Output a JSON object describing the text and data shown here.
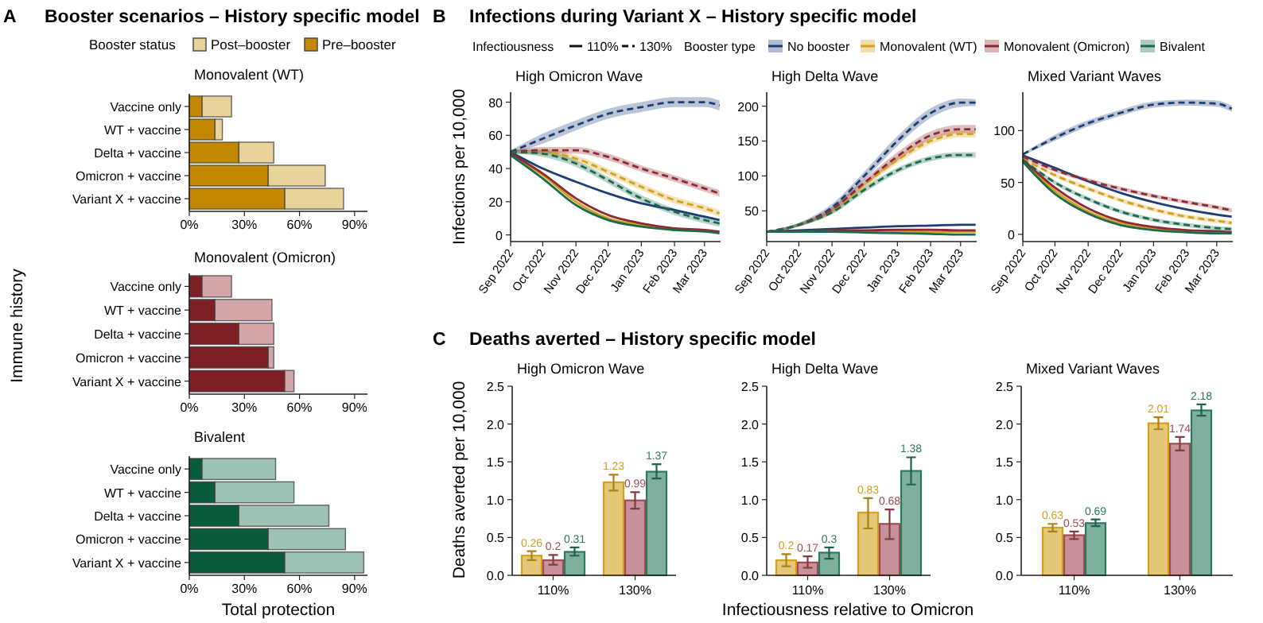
{
  "chart_data": [
    {
      "type": "bar",
      "orientation": "horizontal",
      "stacked": true,
      "title": "Booster scenarios – History specific model",
      "subtitle": "Monovalent (WT)",
      "annotations": [
        "A"
      ],
      "legend": "top",
      "legend_title": "Booster status",
      "categories": [
        "Vaccine only",
        "WT + vaccine",
        "Delta + vaccine",
        "Omicron + vaccine",
        "Variant X + vaccine"
      ],
      "xlim": [
        0,
        97
      ],
      "xticks": [
        {
          "value": 0,
          "label": "0%"
        },
        {
          "value": 30,
          "label": "30%"
        },
        {
          "value": 60,
          "label": "60%"
        },
        {
          "value": 90,
          "label": "90%"
        }
      ],
      "series": [
        {
          "name": "Pre–booster",
          "color": "#c48800",
          "values": [
            7,
            14,
            27,
            43,
            52
          ]
        },
        {
          "name": "Post–booster",
          "color": "#e8d39b",
          "values": [
            16,
            4,
            19,
            31,
            32
          ]
        }
      ]
    },
    {
      "type": "bar",
      "orientation": "horizontal",
      "stacked": true,
      "title": "Monovalent (Omicron)",
      "ylabel": "Immune history",
      "categories": [
        "Vaccine only",
        "WT + vaccine",
        "Delta + vaccine",
        "Omicron + vaccine",
        "Variant X + vaccine"
      ],
      "xlim": [
        0,
        97
      ],
      "xticks": [
        {
          "value": 0,
          "label": "0%"
        },
        {
          "value": 30,
          "label": "30%"
        },
        {
          "value": 60,
          "label": "60%"
        },
        {
          "value": 90,
          "label": "90%"
        }
      ],
      "series": [
        {
          "color": "#7d1f24",
          "values": [
            7,
            14,
            27,
            43,
            52
          ]
        },
        {
          "color": "#d3a6aa",
          "values": [
            16,
            31,
            19,
            3,
            5
          ]
        }
      ]
    },
    {
      "type": "bar",
      "orientation": "horizontal",
      "stacked": true,
      "title": "Bivalent",
      "xlabel": "Total protection",
      "categories": [
        "Vaccine only",
        "WT + vaccine",
        "Delta + vaccine",
        "Omicron + vaccine",
        "Variant X + vaccine"
      ],
      "xlim": [
        0,
        97
      ],
      "xticks": [
        {
          "value": 0,
          "label": "0%"
        },
        {
          "value": 30,
          "label": "30%"
        },
        {
          "value": 60,
          "label": "60%"
        },
        {
          "value": 90,
          "label": "90%"
        }
      ],
      "series": [
        {
          "color": "#0a5a3c",
          "values": [
            7,
            14,
            27,
            43,
            52
          ]
        },
        {
          "color": "#9ec3b6",
          "values": [
            40,
            43,
            49,
            42,
            43
          ]
        }
      ]
    },
    {
      "type": "line",
      "title": "Infections during Variant X – History specific model",
      "subtitle": "High Omicron Wave",
      "annotations": [
        "B",
        "Infectiousness",
        "110%",
        "130%"
      ],
      "legend": "top",
      "legend_title": "Booster type",
      "ylabel": "Infections per 10,000",
      "x": [
        "2022-09-01",
        "2022-10-01",
        "2022-11-01",
        "2022-12-01",
        "2023-01-01",
        "2023-02-01",
        "2023-03-01",
        "2023-03-15"
      ],
      "xlim": [
        "2022-09-01",
        "2023-03-16"
      ],
      "xticks": [
        {
          "value": "2022-09-01",
          "label": "Sep 2022"
        },
        {
          "value": "2022-10-01",
          "label": "Oct 2022"
        },
        {
          "value": "2022-11-01",
          "label": "Nov 2022"
        },
        {
          "value": "2022-12-01",
          "label": "Dec 2022"
        },
        {
          "value": "2023-01-01",
          "label": "Jan 2023"
        },
        {
          "value": "2023-02-01",
          "label": "Feb 2023"
        },
        {
          "value": "2023-03-01",
          "label": "Mar 2023"
        }
      ],
      "ylim": [
        -4,
        86
      ],
      "yticks": [
        0,
        20,
        40,
        60,
        80
      ],
      "series": [
        {
          "name": "No booster",
          "color": "#1f3f73",
          "line_style": "solid",
          "values": [
            50,
            40,
            32,
            25,
            19,
            15,
            11,
            9
          ]
        },
        {
          "name": "Monovalent (WT)",
          "color": "#d4a11e",
          "line_style": "solid",
          "values": [
            48,
            36,
            20,
            10,
            6,
            3,
            null,
            null
          ]
        },
        {
          "name": "Monovalent (Omicron)",
          "color": "#8e2a35",
          "line_style": "solid",
          "values": [
            49,
            37,
            22,
            12,
            7,
            4,
            3,
            2
          ]
        },
        {
          "name": "Bivalent",
          "color": "#1b6b4b",
          "line_style": "solid",
          "values": [
            48,
            34,
            18,
            9,
            5,
            3,
            2,
            1
          ]
        },
        {
          "color": "#1f3f73",
          "line_style": "dashed",
          "values": [
            50,
            58,
            66,
            73,
            77,
            80,
            80,
            78
          ],
          "lower": [
            49,
            55,
            63,
            70,
            74,
            77,
            77,
            75
          ],
          "upper": [
            51,
            61,
            69,
            76,
            80,
            83,
            83,
            81
          ]
        },
        {
          "color": "#d4a11e",
          "line_style": "dashed",
          "values": [
            50,
            50,
            46,
            38,
            29,
            21,
            16,
            13
          ],
          "lower": [
            49,
            48,
            44,
            36,
            27,
            19,
            14,
            11
          ],
          "upper": [
            51,
            52,
            48,
            40,
            31,
            23,
            18,
            15
          ]
        },
        {
          "color": "#8e2a35",
          "line_style": "dashed",
          "values": [
            50,
            51,
            51,
            47,
            40,
            34,
            28,
            25
          ],
          "lower": [
            49,
            49,
            49,
            45,
            38,
            32,
            26,
            23
          ],
          "upper": [
            51,
            53,
            53,
            49,
            42,
            36,
            30,
            27
          ]
        },
        {
          "color": "#1b6b4b",
          "line_style": "dashed",
          "values": [
            50,
            49,
            43,
            33,
            22,
            14,
            9,
            7
          ],
          "lower": [
            49,
            47,
            41,
            31,
            20,
            12,
            7,
            5
          ],
          "upper": [
            51,
            51,
            45,
            35,
            24,
            16,
            11,
            9
          ]
        }
      ]
    },
    {
      "type": "line",
      "title": "High Delta Wave",
      "x": [
        "2022-09-01",
        "2022-10-01",
        "2022-11-01",
        "2022-12-01",
        "2023-01-01",
        "2023-02-01",
        "2023-03-01",
        "2023-03-15"
      ],
      "xlim": [
        "2022-09-01",
        "2023-03-16"
      ],
      "xticks": [
        {
          "value": "2022-09-01",
          "label": "Sep 2022"
        },
        {
          "value": "2022-10-01",
          "label": "Oct 2022"
        },
        {
          "value": "2022-11-01",
          "label": "Nov 2022"
        },
        {
          "value": "2022-12-01",
          "label": "Dec 2022"
        },
        {
          "value": "2023-01-01",
          "label": "Jan 2023"
        },
        {
          "value": "2023-02-01",
          "label": "Feb 2023"
        },
        {
          "value": "2023-03-01",
          "label": "Mar 2023"
        }
      ],
      "ylim": [
        6,
        220
      ],
      "yticks": [
        50,
        100,
        150,
        200
      ],
      "series": [
        {
          "color": "#1f3f73",
          "line_style": "solid",
          "values": [
            20,
            22,
            24,
            26,
            28,
            29,
            30,
            30
          ]
        },
        {
          "color": "#d4a11e",
          "line_style": "solid",
          "values": [
            null,
            null,
            null,
            21,
            21,
            20,
            20,
            20
          ]
        },
        {
          "color": "#8e2a35",
          "line_style": "solid",
          "values": [
            20,
            21,
            22,
            22,
            23,
            23,
            22,
            22
          ]
        },
        {
          "color": "#1b6b4b",
          "line_style": "solid",
          "values": [
            20,
            20,
            20,
            19,
            18,
            17,
            16,
            16
          ]
        },
        {
          "color": "#1f3f73",
          "line_style": "dashed",
          "values": [
            20,
            30,
            55,
            100,
            150,
            190,
            205,
            205
          ],
          "lower": [
            19,
            27,
            50,
            94,
            143,
            183,
            199,
            200
          ],
          "upper": [
            21,
            33,
            60,
            106,
            157,
            197,
            211,
            210
          ]
        },
        {
          "color": "#d4a11e",
          "line_style": "dashed",
          "values": [
            20,
            30,
            50,
            87,
            123,
            150,
            160,
            160
          ],
          "lower": [
            19,
            28,
            46,
            82,
            118,
            145,
            155,
            155
          ],
          "upper": [
            21,
            32,
            54,
            92,
            128,
            155,
            165,
            165
          ]
        },
        {
          "color": "#8e2a35",
          "line_style": "dashed",
          "values": [
            20,
            30,
            52,
            90,
            128,
            158,
            167,
            167
          ],
          "lower": [
            19,
            28,
            48,
            85,
            122,
            152,
            161,
            161
          ],
          "upper": [
            21,
            32,
            56,
            95,
            134,
            164,
            173,
            173
          ]
        },
        {
          "color": "#1b6b4b",
          "line_style": "dashed",
          "values": [
            20,
            30,
            48,
            80,
            108,
            125,
            130,
            130
          ],
          "lower": [
            19,
            28,
            45,
            76,
            104,
            121,
            126,
            126
          ],
          "upper": [
            21,
            32,
            51,
            84,
            112,
            129,
            134,
            134
          ]
        }
      ]
    },
    {
      "type": "line",
      "title": "Mixed Variant Waves",
      "x": [
        "2022-09-01",
        "2022-10-01",
        "2022-11-01",
        "2022-12-01",
        "2023-01-01",
        "2023-02-01",
        "2023-03-01",
        "2023-03-15"
      ],
      "xlim": [
        "2022-09-01",
        "2023-03-16"
      ],
      "xticks": [
        {
          "value": "2022-09-01",
          "label": "Sep 2022"
        },
        {
          "value": "2022-10-01",
          "label": "Oct 2022"
        },
        {
          "value": "2022-11-01",
          "label": "Nov 2022"
        },
        {
          "value": "2022-12-01",
          "label": "Dec 2022"
        },
        {
          "value": "2023-01-01",
          "label": "Jan 2023"
        },
        {
          "value": "2023-02-01",
          "label": "Feb 2023"
        },
        {
          "value": "2023-03-01",
          "label": "Mar 2023"
        }
      ],
      "ylim": [
        -7,
        137
      ],
      "yticks": [
        0,
        50,
        100
      ],
      "series": [
        {
          "color": "#1f3f73",
          "line_style": "solid",
          "values": [
            76,
            64,
            51,
            40,
            31,
            24,
            19,
            17
          ]
        },
        {
          "color": "#d4a11e",
          "line_style": "solid",
          "values": [
            71,
            42,
            22,
            11,
            6,
            3,
            null,
            null
          ]
        },
        {
          "color": "#8e2a35",
          "line_style": "solid",
          "values": [
            72,
            45,
            25,
            13,
            7,
            4,
            3,
            2
          ]
        },
        {
          "color": "#1b6b4b",
          "line_style": "solid",
          "values": [
            70,
            39,
            20,
            9,
            4,
            2,
            1,
            1
          ]
        },
        {
          "color": "#1f3f73",
          "line_style": "dashed",
          "values": [
            77,
            93,
            107,
            117,
            125,
            127,
            126,
            121
          ],
          "lower": [
            76,
            90,
            104,
            114,
            122,
            124,
            123,
            118
          ],
          "upper": [
            78,
            96,
            110,
            120,
            128,
            130,
            129,
            124
          ]
        },
        {
          "color": "#d4a11e",
          "line_style": "dashed",
          "values": [
            73,
            57,
            44,
            33,
            24,
            17,
            13,
            11
          ],
          "lower": [
            72,
            55,
            42,
            31,
            22,
            15,
            11,
            9
          ],
          "upper": [
            74,
            59,
            46,
            35,
            26,
            19,
            15,
            13
          ]
        },
        {
          "color": "#8e2a35",
          "line_style": "dashed",
          "values": [
            75,
            62,
            52,
            44,
            37,
            31,
            26,
            23
          ],
          "lower": [
            74,
            60,
            50,
            42,
            35,
            29,
            24,
            21
          ],
          "upper": [
            76,
            64,
            54,
            46,
            39,
            33,
            28,
            25
          ]
        },
        {
          "color": "#1b6b4b",
          "line_style": "dashed",
          "values": [
            72,
            50,
            34,
            22,
            14,
            9,
            6,
            5
          ],
          "lower": [
            71,
            48,
            32,
            20,
            12,
            7,
            4,
            3
          ],
          "upper": [
            73,
            52,
            36,
            24,
            16,
            11,
            8,
            7
          ]
        }
      ]
    },
    {
      "type": "bar",
      "title": "Deaths averted – History specific model",
      "subtitle": "High Omicron Wave",
      "annotations": [
        "C"
      ],
      "ylabel": "Deaths averted per 10,000",
      "data_labels": true,
      "categories": [
        "110%",
        "130%"
      ],
      "ylim": [
        0,
        2.5
      ],
      "yticks": [
        {
          "value": 0,
          "label": "0.0"
        },
        {
          "value": 0.5,
          "label": "0.5"
        },
        {
          "value": 1,
          "label": "1.0"
        },
        {
          "value": 1.5,
          "label": "1.5"
        },
        {
          "value": 2,
          "label": "2.0"
        },
        {
          "value": 2.5,
          "label": "2.5"
        }
      ],
      "series": [
        {
          "color": "#d4a11e",
          "values": [
            0.26,
            1.23
          ],
          "errors": [
            [
              0.2,
              0.32
            ],
            [
              1.12,
              1.33
            ]
          ]
        },
        {
          "color": "#a24a55",
          "values": [
            0.2,
            0.99
          ],
          "errors": [
            [
              0.14,
              0.27
            ],
            [
              0.88,
              1.1
            ]
          ]
        },
        {
          "color": "#2a7a5c",
          "values": [
            0.31,
            1.37
          ],
          "errors": [
            [
              0.26,
              0.37
            ],
            [
              1.28,
              1.47
            ]
          ]
        }
      ]
    },
    {
      "type": "bar",
      "title": "High Delta Wave",
      "xlabel": "Infectiousness relative to Omicron",
      "data_labels": true,
      "categories": [
        "110%",
        "130%"
      ],
      "ylim": [
        0,
        2.5
      ],
      "yticks": [
        {
          "value": 0,
          "label": "0.0"
        },
        {
          "value": 0.5,
          "label": "0.5"
        },
        {
          "value": 1,
          "label": "1.0"
        },
        {
          "value": 1.5,
          "label": "1.5"
        },
        {
          "value": 2,
          "label": "2.0"
        },
        {
          "value": 2.5,
          "label": "2.5"
        }
      ],
      "series": [
        {
          "color": "#d4a11e",
          "values": [
            0.2,
            0.83
          ],
          "errors": [
            [
              0.12,
              0.28
            ],
            [
              0.62,
              1.02
            ]
          ]
        },
        {
          "color": "#a24a55",
          "values": [
            0.17,
            0.68
          ],
          "errors": [
            [
              0.1,
              0.25
            ],
            [
              0.48,
              0.87
            ]
          ]
        },
        {
          "color": "#2a7a5c",
          "values": [
            0.3,
            1.38
          ],
          "errors": [
            [
              0.22,
              0.37
            ],
            [
              1.2,
              1.56
            ]
          ]
        }
      ]
    },
    {
      "type": "bar",
      "title": "Mixed Variant Waves",
      "data_labels": true,
      "categories": [
        "110%",
        "130%"
      ],
      "ylim": [
        0,
        2.5
      ],
      "yticks": [
        {
          "value": 0,
          "label": "0.0"
        },
        {
          "value": 0.5,
          "label": "0.5"
        },
        {
          "value": 1,
          "label": "1.0"
        },
        {
          "value": 1.5,
          "label": "1.5"
        },
        {
          "value": 2,
          "label": "2.0"
        },
        {
          "value": 2.5,
          "label": "2.5"
        }
      ],
      "series": [
        {
          "color": "#d4a11e",
          "values": [
            0.63,
            2.01
          ],
          "errors": [
            [
              0.58,
              0.68
            ],
            [
              1.93,
              2.09
            ]
          ]
        },
        {
          "color": "#a24a55",
          "values": [
            0.53,
            1.74
          ],
          "errors": [
            [
              0.48,
              0.58
            ],
            [
              1.65,
              1.83
            ]
          ]
        },
        {
          "color": "#2a7a5c",
          "values": [
            0.69,
            2.18
          ],
          "errors": [
            [
              0.65,
              0.74
            ],
            [
              2.11,
              2.26
            ]
          ]
        }
      ]
    }
  ]
}
